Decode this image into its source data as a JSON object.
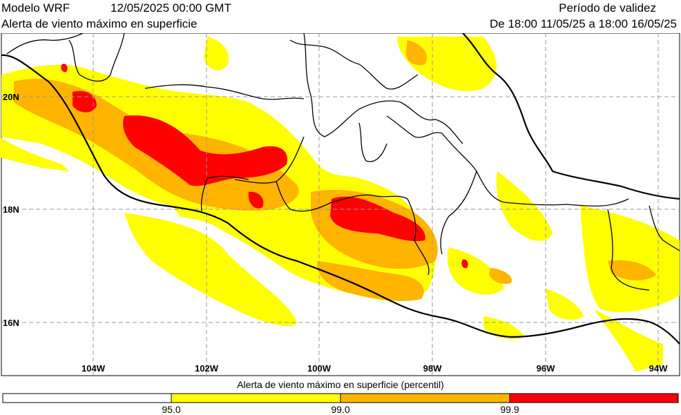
{
  "header": {
    "model": "Modelo WRF",
    "run_date": "12/05/2025 00:00 GMT",
    "subtitle": "Alerta de viento máximo en superficie",
    "validity_label": "Período de validez",
    "validity_range": "De 18:00 11/05/25 a 18:00 16/05/25"
  },
  "map": {
    "lat_labels": [
      "20N",
      "18N",
      "16N"
    ],
    "lon_labels": [
      "104W",
      "102W",
      "100W",
      "98W",
      "96W",
      "94W"
    ],
    "colors": {
      "white": "#ffffff",
      "yellow": "#ffff00",
      "orange": "#ffb400",
      "red": "#ff0000",
      "grid": "#999999",
      "border": "#000000"
    }
  },
  "legend": {
    "title": "Alerta de viento máximo en superficie (percentil)",
    "ticks": [
      "95.0",
      "99.0",
      "99.9"
    ],
    "bins": [
      "#ffffff",
      "#ffff00",
      "#ffb400",
      "#ff0000"
    ]
  }
}
